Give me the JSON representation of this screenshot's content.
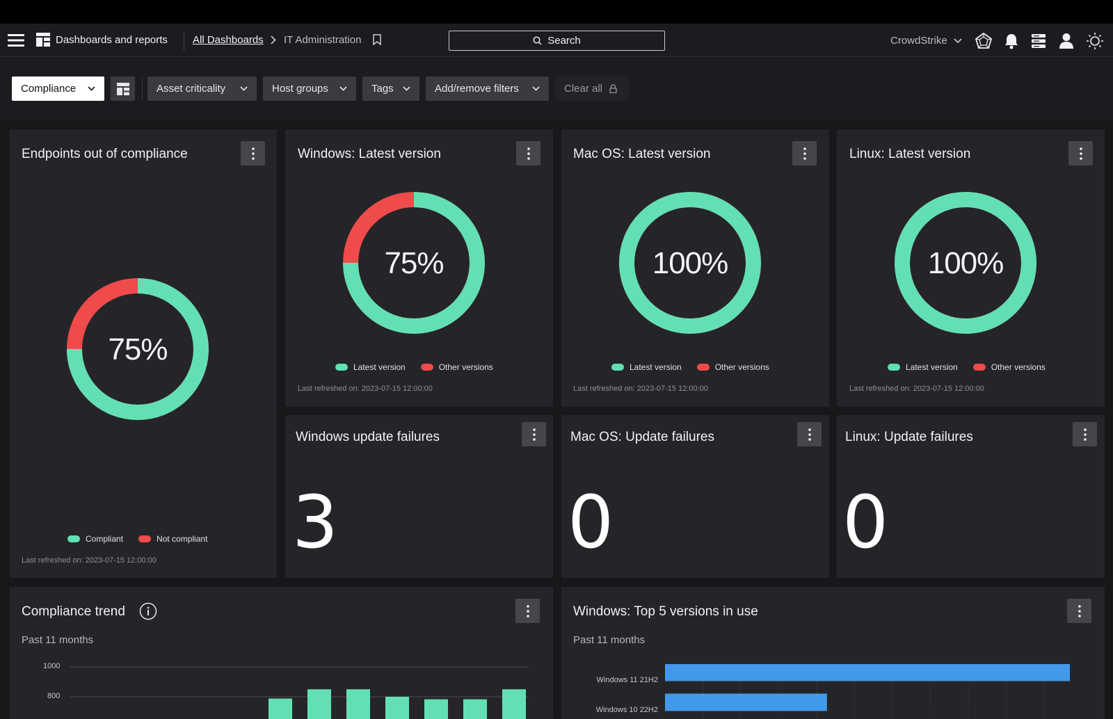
{
  "nav": {
    "app_title": "Dashboards and reports",
    "breadcrumb_root": "All Dashboards",
    "breadcrumb_current": "IT Administration",
    "search_label": "Search",
    "tenant": "CrowdStrike"
  },
  "filters": {
    "dashboard_select": "Compliance",
    "asset_criticality": "Asset criticality",
    "host_groups": "Host groups",
    "tags": "Tags",
    "add_remove": "Add/remove filters",
    "clear_all": "Clear all"
  },
  "colors": {
    "compliant": "#62e0b4",
    "not_compliant": "#ef4b4b",
    "bar_blue": "#4299ea"
  },
  "cards": {
    "endpoints": {
      "title": "Endpoints out of compliance",
      "percent_label": "75%",
      "percent_value": 75,
      "legend_a": "Compliant",
      "legend_b": "Not compliant",
      "refreshed": "Last refreshed on: 2023-07-15 12:00:00"
    },
    "windows_latest": {
      "title": "Windows: Latest version",
      "percent_label": "75%",
      "percent_value": 75,
      "legend_a": "Latest version",
      "legend_b": "Other versions",
      "refreshed": "Last refreshed on: 2023-07-15 12:00:00"
    },
    "mac_latest": {
      "title": "Mac OS: Latest version",
      "percent_label": "100%",
      "percent_value": 100,
      "legend_a": "Latest version",
      "legend_b": "Other versions",
      "refreshed": "Last refreshed on: 2023-07-15 12:00:00"
    },
    "linux_latest": {
      "title": "Linux: Latest version",
      "percent_label": "100%",
      "percent_value": 100,
      "legend_a": "Latest version",
      "legend_b": "Other versions",
      "refreshed": "Last refreshed on: 2023-07-15 12:00:00"
    },
    "windows_failures": {
      "title": "Windows update failures",
      "value": "3"
    },
    "mac_failures": {
      "title": "Mac OS: Update failures",
      "value": "0"
    },
    "linux_failures": {
      "title": "Linux: Update failures",
      "value": "0"
    },
    "trend": {
      "title": "Compliance trend",
      "subtitle": "Past 11 months",
      "tick_1000": "1000",
      "tick_800": "800"
    },
    "top5": {
      "title": "Windows: Top 5 versions in use",
      "subtitle": "Past 11 months"
    }
  },
  "chart_data": [
    {
      "type": "bar",
      "title": "Compliance trend",
      "subtitle": "Past 11 months",
      "ylim": [
        0,
        1000
      ],
      "yticks_visible": [
        1000,
        800
      ],
      "grid": true,
      "visible_bar_tops": [
        788,
        850,
        850,
        800,
        783,
        783,
        850
      ],
      "color": "#62e0b4"
    },
    {
      "type": "bar",
      "orientation": "horizontal",
      "title": "Windows: Top 5 versions in use",
      "subtitle": "Past 11 months",
      "categories": [
        "Windows 11 21H2",
        "Windows 10 22H2"
      ],
      "values": [
        100,
        40
      ],
      "color": "#4299ea"
    }
  ]
}
